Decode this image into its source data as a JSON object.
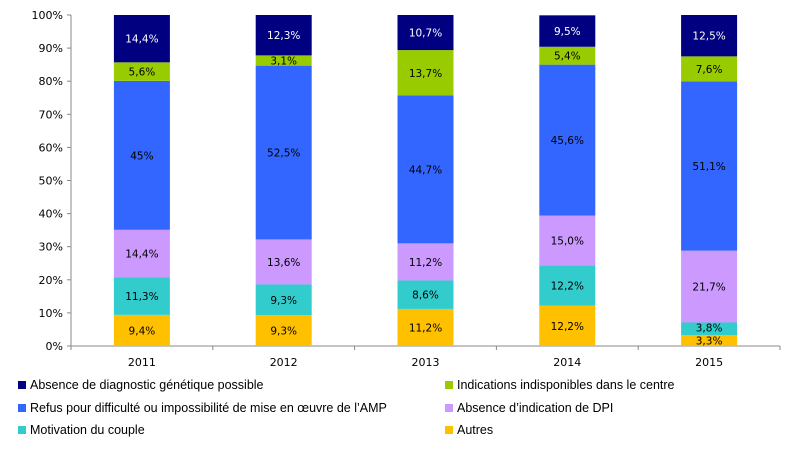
{
  "chart_data": {
    "type": "bar",
    "stacked": true,
    "percent": true,
    "categories": [
      "2011",
      "2012",
      "2013",
      "2014",
      "2015"
    ],
    "ylim": [
      0,
      100
    ],
    "yticks": [
      "0%",
      "10%",
      "20%",
      "30%",
      "40%",
      "50%",
      "60%",
      "70%",
      "80%",
      "90%",
      "100%"
    ],
    "grid": false,
    "legend_position": "bottom",
    "series": [
      {
        "name": "Autres",
        "color": "#FFC000",
        "label_color": "#000000",
        "values": [
          9.4,
          9.3,
          11.2,
          12.2,
          3.3
        ],
        "labels": [
          "9,4%",
          "9,3%",
          "11,2%",
          "12,2%",
          "3,3%"
        ]
      },
      {
        "name": "Motivation du couple",
        "color": "#33CCCC",
        "label_color": "#000000",
        "values": [
          11.3,
          9.3,
          8.6,
          12.2,
          3.8
        ],
        "labels": [
          "11,3%",
          "9,3%",
          "8,6%",
          "12,2%",
          "3,8%"
        ]
      },
      {
        "name": "Absence d’indication de DPI",
        "color": "#CC99FF",
        "label_color": "#000000",
        "values": [
          14.4,
          13.6,
          11.2,
          15.0,
          21.7
        ],
        "labels": [
          "14,4%",
          "13,6%",
          "11,2%",
          "15,0%",
          "21,7%"
        ]
      },
      {
        "name": "Refus pour difficulté ou impossibilité  de mise en œuvre de l’AMP",
        "color": "#3366FF",
        "label_color": "#000000",
        "values": [
          45,
          52.5,
          44.7,
          45.6,
          51.1
        ],
        "labels": [
          "45%",
          "52,5%",
          "44,7%",
          "45,6%",
          "51,1%"
        ]
      },
      {
        "name": "Indications indisponibles dans le centre",
        "color": "#99CC00",
        "label_color": "#000000",
        "values": [
          5.6,
          3.1,
          13.7,
          5.4,
          7.6
        ],
        "labels": [
          "5,6%",
          "3,1%",
          "13,7%",
          "5,4%",
          "7,6%"
        ]
      },
      {
        "name": "Absence de diagnostic génétique possible",
        "color": "#000080",
        "label_color": "#FFFFFF",
        "values": [
          14.4,
          12.3,
          10.7,
          9.5,
          12.5
        ],
        "labels": [
          "14,4%",
          "12,3%",
          "10,7%",
          "9,5%",
          "12,5%"
        ]
      }
    ],
    "legend_order": [
      5,
      4,
      3,
      2,
      1,
      0
    ]
  }
}
